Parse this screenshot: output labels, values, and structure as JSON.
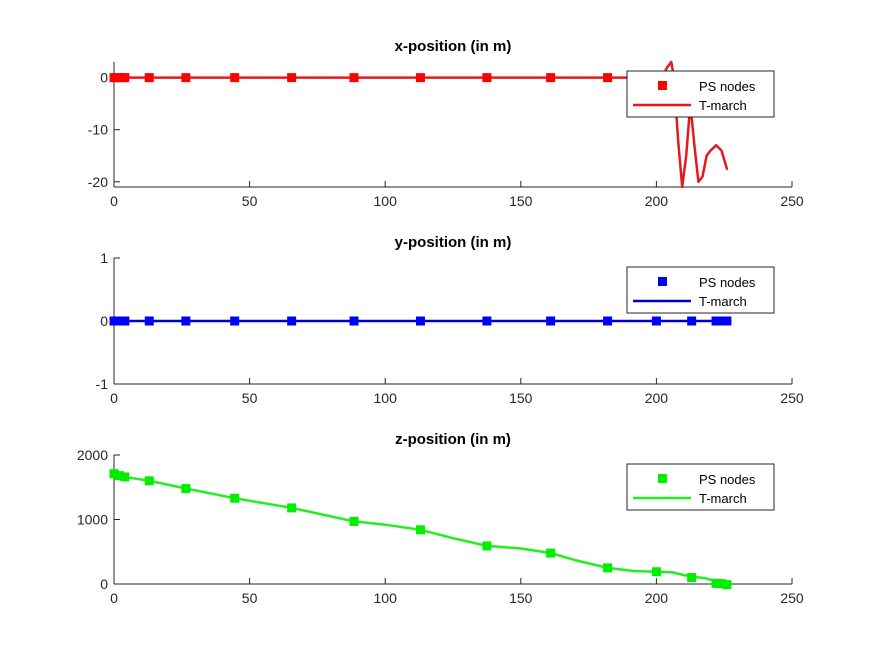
{
  "chart_data": [
    {
      "type": "line",
      "title": "x-position (in m)",
      "xlim": [
        0,
        250
      ],
      "ylim": [
        -21,
        3
      ],
      "xticks": [
        0,
        50,
        100,
        150,
        200,
        250
      ],
      "yticks": [
        0,
        -10,
        -20
      ],
      "legend_placement": "top-right",
      "series": [
        {
          "name": "PS nodes",
          "kind": "markers",
          "color": "#ff0000",
          "x": [
            0,
            1,
            2.5,
            4,
            13,
            26.5,
            44.5,
            65.5,
            88.5,
            113,
            137.5,
            161,
            182,
            200,
            213,
            222,
            224.5,
            226
          ],
          "y": [
            0,
            0,
            0,
            0,
            0,
            0,
            0,
            0,
            0,
            0,
            0,
            0,
            0,
            0,
            0,
            0,
            0,
            0
          ]
        },
        {
          "name": "T-march",
          "kind": "line",
          "color": "#e41a1c",
          "x": [
            0,
            195,
            200,
            202,
            204,
            205.5,
            206.5,
            208,
            209.5,
            211,
            212.5,
            214,
            215.5,
            217,
            218.5,
            220,
            222,
            224,
            226
          ],
          "y": [
            0,
            0,
            0,
            0,
            2,
            3,
            0,
            -12,
            -21,
            -15,
            -5,
            -13,
            -20,
            -19,
            -15,
            -14,
            -13,
            -14,
            -17.5
          ]
        }
      ]
    },
    {
      "type": "line",
      "title": "y-position (in m)",
      "xlim": [
        0,
        250
      ],
      "ylim": [
        -1,
        1
      ],
      "xticks": [
        0,
        50,
        100,
        150,
        200,
        250
      ],
      "yticks": [
        1,
        0,
        -1
      ],
      "legend_placement": "top-right",
      "series": [
        {
          "name": "PS nodes",
          "kind": "markers",
          "color": "#0000ff",
          "x": [
            0,
            1,
            2.5,
            4,
            13,
            26.5,
            44.5,
            65.5,
            88.5,
            113,
            137.5,
            161,
            182,
            200,
            213,
            222,
            224.5,
            226
          ],
          "y": [
            0,
            0,
            0,
            0,
            0,
            0,
            0,
            0,
            0,
            0,
            0,
            0,
            0,
            0,
            0,
            0,
            0,
            0
          ]
        },
        {
          "name": "T-march",
          "kind": "line",
          "color": "#0000cc",
          "x": [
            0,
            226
          ],
          "y": [
            0,
            0
          ]
        }
      ]
    },
    {
      "type": "line",
      "title": "z-position (in m)",
      "xlim": [
        0,
        250
      ],
      "ylim": [
        0,
        2000
      ],
      "xticks": [
        0,
        50,
        100,
        150,
        200,
        250
      ],
      "yticks": [
        2000,
        1000,
        0
      ],
      "legend_placement": "top-right",
      "series": [
        {
          "name": "PS nodes",
          "kind": "markers",
          "color": "#00ff00",
          "x": [
            0,
            2,
            4,
            13,
            26.5,
            44.5,
            65.5,
            88.5,
            113,
            137.5,
            161,
            182,
            200,
            213,
            222,
            224,
            226
          ],
          "y": [
            1710,
            1680,
            1660,
            1600,
            1480,
            1330,
            1180,
            970,
            840,
            590,
            480,
            250,
            190,
            100,
            10,
            5,
            -10
          ],
          "marker_color": "#00ee00"
        },
        {
          "name": "T-march",
          "kind": "line",
          "color": "#22ee22",
          "x": [
            0,
            4,
            13,
            26.5,
            44.5,
            65.5,
            88.5,
            100,
            113,
            125,
            137.5,
            150,
            161,
            170,
            182,
            192,
            200,
            206,
            210,
            214,
            218,
            222,
            226
          ],
          "y": [
            1710,
            1660,
            1600,
            1480,
            1330,
            1180,
            970,
            920,
            840,
            710,
            590,
            550,
            480,
            370,
            250,
            200,
            190,
            180,
            140,
            110,
            90,
            40,
            -10
          ]
        }
      ]
    }
  ]
}
